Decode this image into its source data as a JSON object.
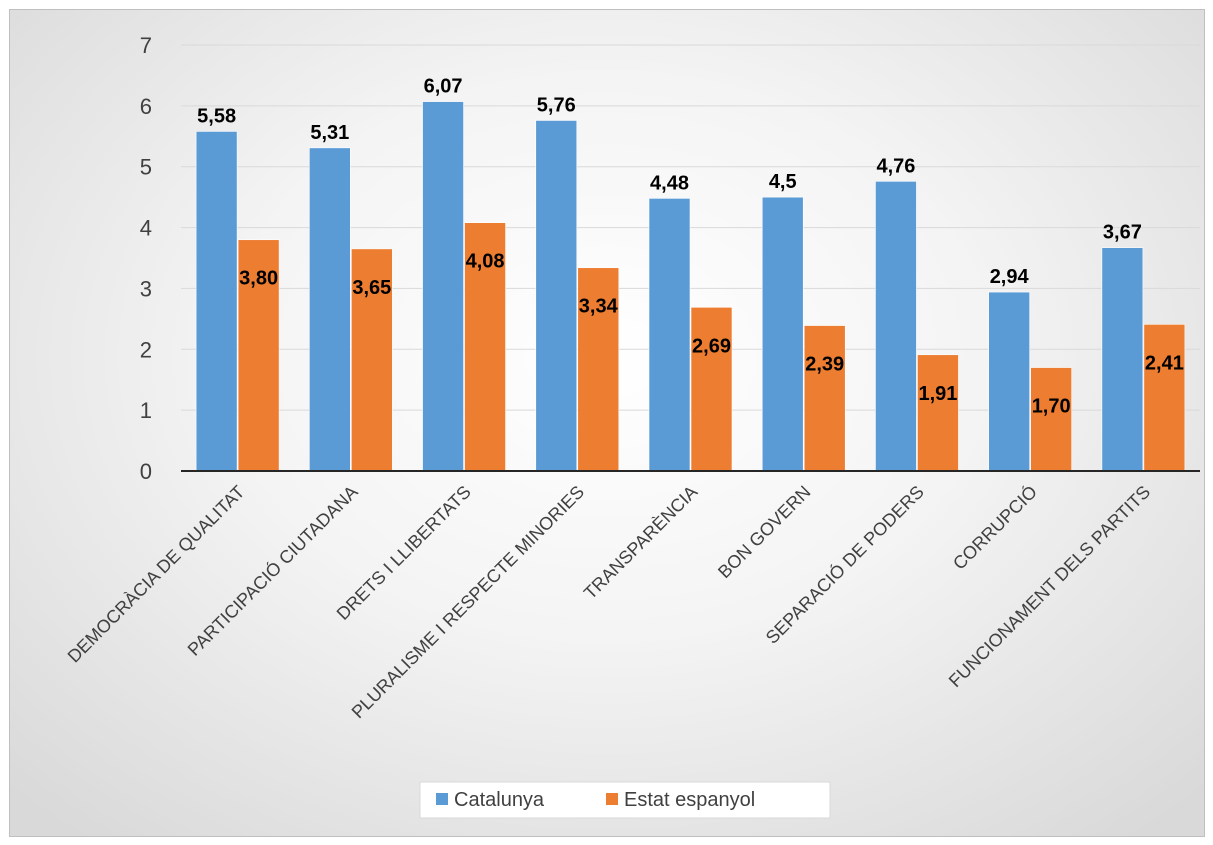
{
  "chart_data": {
    "type": "bar",
    "title": "",
    "xlabel": "",
    "ylabel": "",
    "ylim": [
      0,
      7
    ],
    "yticks": [
      0,
      1,
      2,
      3,
      4,
      5,
      6,
      7
    ],
    "grid": true,
    "legend_position": "bottom",
    "categories": [
      "DEMOCRÀCIA DE QUALITAT",
      "PARTICIPACIÓ CIUTADANA",
      "DRETS I LLIBERTATS",
      "PLURALISME I RESPECTE MINORIES",
      "TRANSPARÈNCIA",
      "BON GOVERN",
      "SEPARACIÓ DE PODERS",
      "CORRUPCIÓ",
      "FUNCIONAMENT DELS PARTITS"
    ],
    "series": [
      {
        "name": "Catalunya",
        "color": "#5b9bd5",
        "values": [
          5.58,
          5.31,
          6.07,
          5.76,
          4.48,
          4.5,
          4.76,
          2.94,
          3.67
        ],
        "labels": [
          "5,58",
          "5,31",
          "6,07",
          "5,76",
          "4,48",
          "4,5",
          "4,76",
          "2,94",
          "3,67"
        ]
      },
      {
        "name": "Estat espanyol",
        "color": "#ed7d31",
        "values": [
          3.8,
          3.65,
          4.08,
          3.34,
          2.69,
          2.39,
          1.91,
          1.7,
          2.41
        ],
        "labels": [
          "3,80",
          "3,65",
          "4,08",
          "3,34",
          "2,69",
          "2,39",
          "1,91",
          "1,70",
          "2,41"
        ]
      }
    ]
  }
}
